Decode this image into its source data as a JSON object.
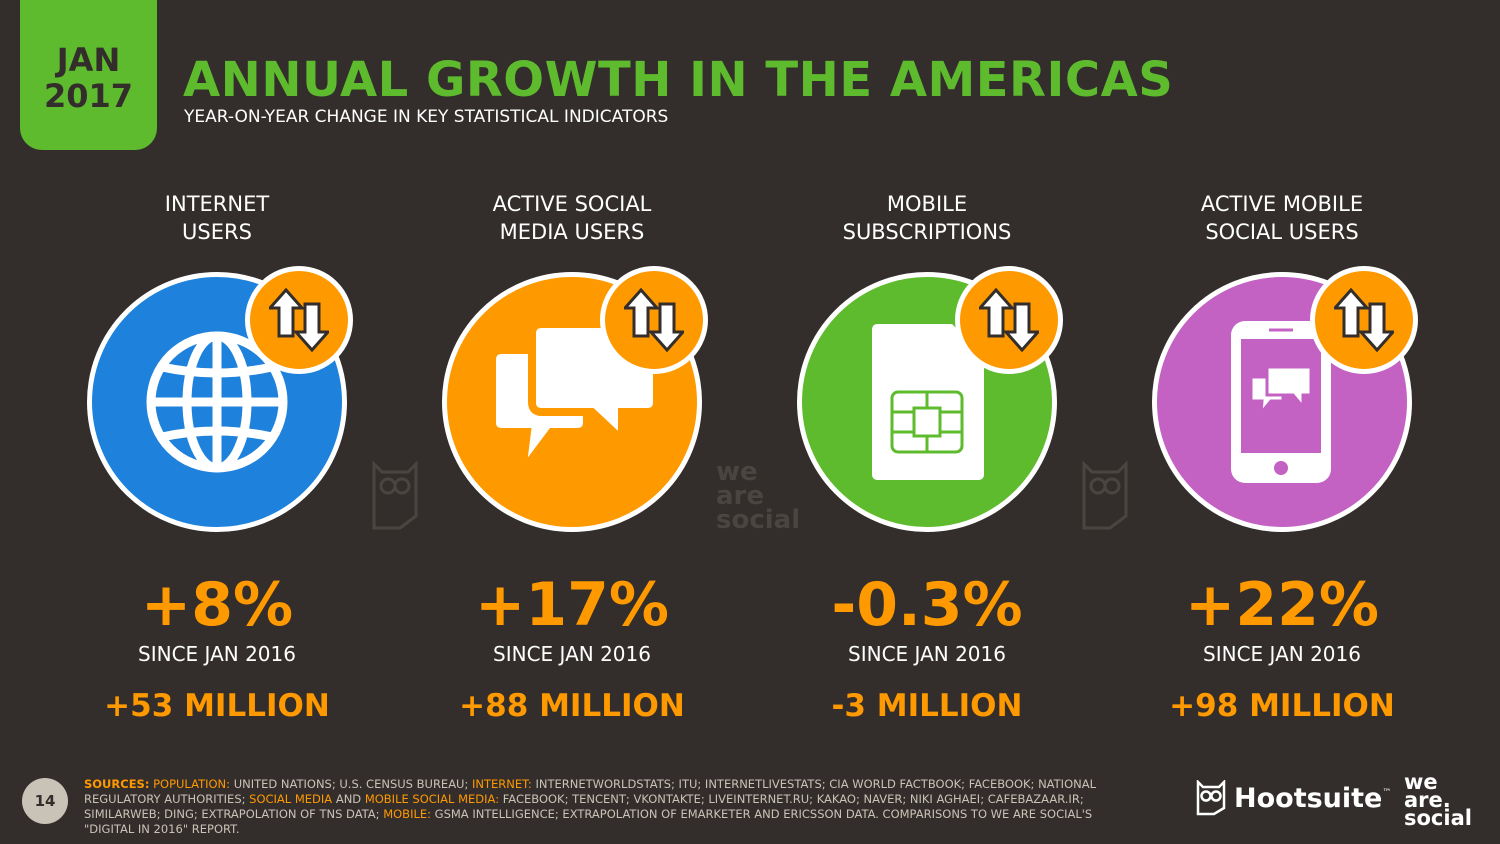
{
  "header": {
    "badge_month": "JAN",
    "badge_year": "2017",
    "title": "ANNUAL GROWTH IN THE AMERICAS",
    "subtitle": "YEAR-ON-YEAR CHANGE IN KEY STATISTICAL INDICATORS"
  },
  "colors": {
    "background": "#332e2b",
    "green": "#5ebb2e",
    "orange": "#ff9900",
    "blue": "#1e82dc",
    "purple": "#c462c4"
  },
  "indicators": [
    {
      "label_line1": "INTERNET",
      "label_line2": "USERS",
      "icon": "globe-icon",
      "percent": "+8%",
      "since": "SINCE JAN 2016",
      "absolute": "+53 MILLION"
    },
    {
      "label_line1": "ACTIVE SOCIAL",
      "label_line2": "MEDIA USERS",
      "icon": "chat-bubbles-icon",
      "percent": "+17%",
      "since": "SINCE JAN 2016",
      "absolute": "+88 MILLION"
    },
    {
      "label_line1": "MOBILE",
      "label_line2": "SUBSCRIPTIONS",
      "icon": "sim-card-icon",
      "percent": "-0.3%",
      "since": "SINCE JAN 2016",
      "absolute": "-3 MILLION"
    },
    {
      "label_line1": "ACTIVE MOBILE",
      "label_line2": "SOCIAL USERS",
      "icon": "smartphone-chat-icon",
      "percent": "+22%",
      "since": "SINCE JAN 2016",
      "absolute": "+98 MILLION"
    }
  ],
  "watermark": {
    "line1": "we",
    "line2": "are",
    "line3": "social"
  },
  "footer": {
    "page_number": "14",
    "sources_label": "SOURCES:",
    "population_label": "POPULATION:",
    "population_text": "UNITED NATIONS; U.S. CENSUS BUREAU;",
    "internet_label": "INTERNET:",
    "internet_text": "INTERNETWORLDSTATS; ITU; INTERNETLIVESTATS; CIA WORLD FACTBOOK; FACEBOOK; NATIONAL REGULATORY AUTHORITIES;",
    "social_label": "SOCIAL MEDIA",
    "and_text": "AND",
    "mobile_social_label": "MOBILE SOCIAL MEDIA:",
    "social_text": "FACEBOOK; TENCENT; VKONTAKTE; LIVEINTERNET.RU; KAKAO; NAVER; NIKI AGHAEI; CAFEBAZAAR.IR; SIMILARWEB; DING; EXTRAPOLATION OF TNS DATA;",
    "mobile_label": "MOBILE:",
    "mobile_text": "GSMA INTELLIGENCE; EXTRAPOLATION OF EMARKETER AND ERICSSON DATA. COMPARISONS TO WE ARE SOCIAL'S \"DIGITAL IN 2016\" REPORT.",
    "hootsuite": "Hootsuite",
    "tm": "™",
    "was_line1": "we",
    "was_line2": "are.",
    "was_line3": "social"
  }
}
